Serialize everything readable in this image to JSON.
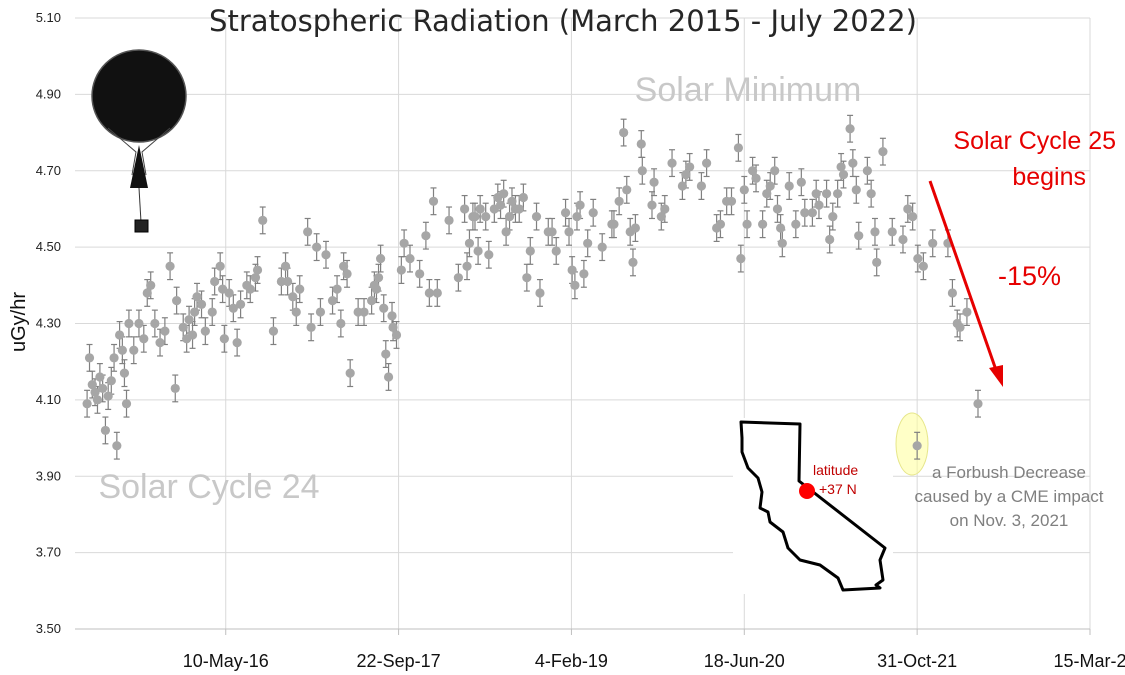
{
  "chart_data": {
    "type": "scatter",
    "title": "Stratospheric Radiation (March 2015 - July 2022)",
    "xlabel": "",
    "ylabel": "uGy/hr",
    "ylim": [
      3.5,
      5.1
    ],
    "y_ticks": [
      "3.50",
      "3.70",
      "3.90",
      "4.10",
      "4.30",
      "4.50",
      "4.70",
      "4.90",
      "5.10"
    ],
    "xlim": [
      "2015-03-01",
      "2023-03-15"
    ],
    "x_ticks": [
      {
        "date": "2016-05-10",
        "label": "10-May-16"
      },
      {
        "date": "2017-09-22",
        "label": "22-Sep-17"
      },
      {
        "date": "2019-02-04",
        "label": "4-Feb-19"
      },
      {
        "date": "2020-06-18",
        "label": "18-Jun-20"
      },
      {
        "date": "2021-10-31",
        "label": "31-Oct-21"
      },
      {
        "date": "2023-03-15",
        "label": "15-Mar-2"
      }
    ],
    "grid": true,
    "marker_color": "#a6a6a6",
    "errorbar_color": "#808080",
    "series": [
      {
        "error": 0.035,
        "points": [
          [
            "2015-04-05",
            4.09
          ],
          [
            "2015-04-12",
            4.21
          ],
          [
            "2015-04-20",
            4.14
          ],
          [
            "2015-04-28",
            4.12
          ],
          [
            "2015-05-05",
            4.1
          ],
          [
            "2015-05-12",
            4.16
          ],
          [
            "2015-05-20",
            4.13
          ],
          [
            "2015-05-28",
            4.02
          ],
          [
            "2015-06-05",
            4.11
          ],
          [
            "2015-06-14",
            4.15
          ],
          [
            "2015-06-22",
            4.21
          ],
          [
            "2015-06-30",
            3.98
          ],
          [
            "2015-07-08",
            4.27
          ],
          [
            "2015-07-16",
            4.23
          ],
          [
            "2015-07-22",
            4.17
          ],
          [
            "2015-07-28",
            4.09
          ],
          [
            "2015-08-04",
            4.3
          ],
          [
            "2015-08-18",
            4.23
          ],
          [
            "2015-09-02",
            4.3
          ],
          [
            "2015-09-16",
            4.26
          ],
          [
            "2015-09-26",
            4.38
          ],
          [
            "2015-10-06",
            4.4
          ],
          [
            "2015-10-18",
            4.3
          ],
          [
            "2015-11-02",
            4.25
          ],
          [
            "2015-11-16",
            4.28
          ],
          [
            "2015-12-01",
            4.45
          ],
          [
            "2015-12-16",
            4.13
          ],
          [
            "2015-12-20",
            4.36
          ],
          [
            "2016-01-08",
            4.29
          ],
          [
            "2016-01-18",
            4.26
          ],
          [
            "2016-01-25",
            4.31
          ],
          [
            "2016-02-04",
            4.27
          ],
          [
            "2016-02-10",
            4.33
          ],
          [
            "2016-02-17",
            4.37
          ],
          [
            "2016-03-01",
            4.35
          ],
          [
            "2016-03-12",
            4.28
          ],
          [
            "2016-04-01",
            4.33
          ],
          [
            "2016-04-08",
            4.41
          ],
          [
            "2016-04-24",
            4.45
          ],
          [
            "2016-05-01",
            4.39
          ],
          [
            "2016-05-06",
            4.26
          ],
          [
            "2016-05-20",
            4.38
          ],
          [
            "2016-06-01",
            4.34
          ],
          [
            "2016-06-12",
            4.25
          ],
          [
            "2016-06-22",
            4.35
          ],
          [
            "2016-07-10",
            4.4
          ],
          [
            "2016-07-20",
            4.39
          ],
          [
            "2016-08-04",
            4.42
          ],
          [
            "2016-08-10",
            4.44
          ],
          [
            "2016-08-25",
            4.57
          ],
          [
            "2016-09-25",
            4.28
          ],
          [
            "2016-10-18",
            4.41
          ],
          [
            "2016-10-30",
            4.45
          ],
          [
            "2016-11-05",
            4.41
          ],
          [
            "2016-11-20",
            4.37
          ],
          [
            "2016-11-30",
            4.33
          ],
          [
            "2016-12-10",
            4.39
          ],
          [
            "2017-01-02",
            4.54
          ],
          [
            "2017-01-12",
            4.29
          ],
          [
            "2017-01-28",
            4.5
          ],
          [
            "2017-02-08",
            4.33
          ],
          [
            "2017-02-24",
            4.48
          ],
          [
            "2017-03-15",
            4.36
          ],
          [
            "2017-03-28",
            4.39
          ],
          [
            "2017-04-08",
            4.3
          ],
          [
            "2017-04-16",
            4.45
          ],
          [
            "2017-04-26",
            4.43
          ],
          [
            "2017-05-05",
            4.17
          ],
          [
            "2017-05-28",
            4.33
          ],
          [
            "2017-06-14",
            4.33
          ],
          [
            "2017-07-06",
            4.36
          ],
          [
            "2017-07-14",
            4.4
          ],
          [
            "2017-07-20",
            4.39
          ],
          [
            "2017-07-26",
            4.42
          ],
          [
            "2017-08-01",
            4.47
          ],
          [
            "2017-08-10",
            4.34
          ],
          [
            "2017-08-16",
            4.22
          ],
          [
            "2017-08-24",
            4.16
          ],
          [
            "2017-09-03",
            4.32
          ],
          [
            "2017-09-06",
            4.29
          ],
          [
            "2017-09-16",
            4.27
          ],
          [
            "2017-09-30",
            4.44
          ],
          [
            "2017-10-08",
            4.51
          ],
          [
            "2017-10-25",
            4.47
          ],
          [
            "2017-11-22",
            4.43
          ],
          [
            "2017-12-10",
            4.53
          ],
          [
            "2017-12-20",
            4.38
          ],
          [
            "2018-01-01",
            4.62
          ],
          [
            "2018-01-12",
            4.38
          ],
          [
            "2018-02-15",
            4.57
          ],
          [
            "2018-03-14",
            4.42
          ],
          [
            "2018-04-01",
            4.6
          ],
          [
            "2018-04-08",
            4.45
          ],
          [
            "2018-04-15",
            4.51
          ],
          [
            "2018-04-25",
            4.58
          ],
          [
            "2018-05-01",
            4.58
          ],
          [
            "2018-05-10",
            4.49
          ],
          [
            "2018-05-16",
            4.6
          ],
          [
            "2018-06-01",
            4.58
          ],
          [
            "2018-06-10",
            4.48
          ],
          [
            "2018-06-26",
            4.6
          ],
          [
            "2018-07-06",
            4.63
          ],
          [
            "2018-07-14",
            4.61
          ],
          [
            "2018-07-23",
            4.64
          ],
          [
            "2018-07-30",
            4.54
          ],
          [
            "2018-08-09",
            4.58
          ],
          [
            "2018-08-16",
            4.62
          ],
          [
            "2018-08-26",
            4.6
          ],
          [
            "2018-09-06",
            4.6
          ],
          [
            "2018-09-18",
            4.63
          ],
          [
            "2018-09-28",
            4.42
          ],
          [
            "2018-10-08",
            4.49
          ],
          [
            "2018-10-26",
            4.58
          ],
          [
            "2018-11-05",
            4.38
          ],
          [
            "2018-11-29",
            4.54
          ],
          [
            "2018-12-10",
            4.54
          ],
          [
            "2018-12-22",
            4.49
          ],
          [
            "2019-01-18",
            4.59
          ],
          [
            "2019-01-28",
            4.54
          ],
          [
            "2019-02-06",
            4.44
          ],
          [
            "2019-02-14",
            4.4
          ],
          [
            "2019-02-20",
            4.58
          ],
          [
            "2019-03-01",
            4.61
          ],
          [
            "2019-03-12",
            4.43
          ],
          [
            "2019-03-23",
            4.51
          ],
          [
            "2019-04-08",
            4.59
          ],
          [
            "2019-05-04",
            4.5
          ],
          [
            "2019-06-01",
            4.56
          ],
          [
            "2019-06-07",
            4.56
          ],
          [
            "2019-06-22",
            4.62
          ],
          [
            "2019-07-05",
            4.8
          ],
          [
            "2019-07-14",
            4.65
          ],
          [
            "2019-07-24",
            4.54
          ],
          [
            "2019-08-01",
            4.46
          ],
          [
            "2019-08-08",
            4.55
          ],
          [
            "2019-08-25",
            4.77
          ],
          [
            "2019-08-28",
            4.7
          ],
          [
            "2019-09-25",
            4.61
          ],
          [
            "2019-10-01",
            4.67
          ],
          [
            "2019-10-22",
            4.58
          ],
          [
            "2019-11-01",
            4.6
          ],
          [
            "2019-11-22",
            4.72
          ],
          [
            "2019-12-22",
            4.66
          ],
          [
            "2020-01-01",
            4.69
          ],
          [
            "2020-01-12",
            4.71
          ],
          [
            "2020-02-15",
            4.66
          ],
          [
            "2020-03-01",
            4.72
          ],
          [
            "2020-03-30",
            4.55
          ],
          [
            "2020-04-10",
            4.56
          ],
          [
            "2020-04-28",
            4.62
          ],
          [
            "2020-05-12",
            4.62
          ],
          [
            "2020-06-01",
            4.76
          ],
          [
            "2020-06-08",
            4.47
          ],
          [
            "2020-06-18",
            4.65
          ],
          [
            "2020-06-26",
            4.56
          ],
          [
            "2020-07-12",
            4.7
          ],
          [
            "2020-07-22",
            4.68
          ],
          [
            "2020-08-10",
            4.56
          ],
          [
            "2020-08-22",
            4.64
          ],
          [
            "2020-09-01",
            4.66
          ],
          [
            "2020-09-14",
            4.7
          ],
          [
            "2020-09-22",
            4.6
          ],
          [
            "2020-10-01",
            4.55
          ],
          [
            "2020-10-06",
            4.51
          ],
          [
            "2020-10-26",
            4.66
          ],
          [
            "2020-11-14",
            4.56
          ],
          [
            "2020-11-30",
            4.67
          ],
          [
            "2020-12-10",
            4.59
          ],
          [
            "2021-01-01",
            4.59
          ],
          [
            "2021-01-12",
            4.64
          ],
          [
            "2021-01-20",
            4.61
          ],
          [
            "2021-02-11",
            4.64
          ],
          [
            "2021-02-20",
            4.52
          ],
          [
            "2021-03-01",
            4.58
          ],
          [
            "2021-03-15",
            4.64
          ],
          [
            "2021-03-25",
            4.71
          ],
          [
            "2021-04-01",
            4.69
          ],
          [
            "2021-04-20",
            4.81
          ],
          [
            "2021-04-28",
            4.72
          ],
          [
            "2021-05-08",
            4.65
          ],
          [
            "2021-05-15",
            4.53
          ],
          [
            "2021-06-09",
            4.7
          ],
          [
            "2021-06-20",
            4.64
          ],
          [
            "2021-07-01",
            4.54
          ],
          [
            "2021-07-06",
            4.46
          ],
          [
            "2021-07-24",
            4.75
          ],
          [
            "2021-08-20",
            4.54
          ],
          [
            "2021-09-20",
            4.52
          ],
          [
            "2021-10-04",
            4.6
          ],
          [
            "2021-10-18",
            4.58
          ],
          [
            "2021-11-02",
            4.47
          ],
          [
            "2021-11-18",
            4.45
          ],
          [
            "2021-12-15",
            4.51
          ],
          [
            "2022-01-28",
            4.51
          ],
          [
            "2022-02-10",
            4.38
          ],
          [
            "2022-02-24",
            4.3
          ],
          [
            "2022-03-04",
            4.29
          ],
          [
            "2022-03-24",
            4.33
          ],
          [
            "2022-04-25",
            4.09
          ]
        ]
      }
    ],
    "forbush_point": {
      "date": "2021-10-31",
      "value": 3.98
    },
    "background_labels": {
      "solar_minimum": "Solar Minimum",
      "solar_cycle_24": "Solar Cycle 24"
    },
    "annotations": {
      "cycle25_line1": "Solar Cycle 25",
      "cycle25_line2": "begins",
      "percent_change": "-15%",
      "forbush_line1": "a Forbush Decrease",
      "forbush_line2": "caused by a CME impact",
      "forbush_line3": "on Nov. 3, 2021",
      "latitude_label": "latitude",
      "latitude_value": "+37 N"
    }
  }
}
